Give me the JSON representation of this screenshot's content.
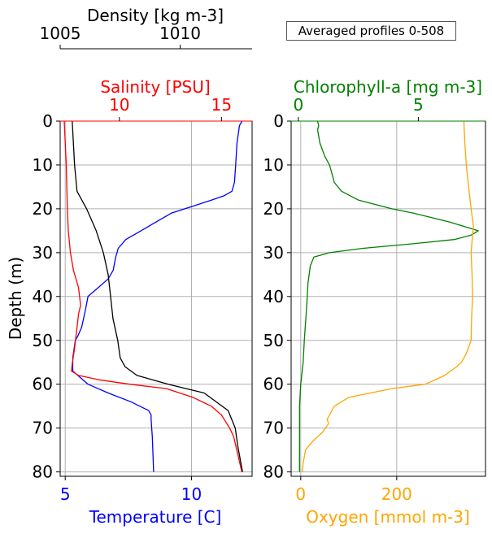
{
  "colors": {
    "temperature": "#0000ff",
    "salinity": "#ff0000",
    "density": "#000000",
    "chlorophyll": "#008000",
    "oxygen": "#ffa500",
    "grid": "#b0b0b0"
  },
  "chart_data": [
    {
      "type": "line",
      "panel": "left",
      "ylabel": "Depth (m)",
      "ylim": [
        81,
        0
      ],
      "yticks": [
        0,
        10,
        20,
        30,
        40,
        50,
        60,
        70,
        80
      ],
      "grid": true,
      "axes": {
        "temperature": {
          "label": "Temperature [C]",
          "position": "bottom",
          "lim": [
            4.8,
            12.4
          ],
          "ticks": [
            5,
            10
          ]
        },
        "salinity": {
          "label": "Salinity [PSU]",
          "position": "top",
          "lim": [
            7.1,
            16.5
          ],
          "ticks": [
            10,
            15
          ]
        },
        "density": {
          "label": "Density [kg m-3]",
          "position": "top-offset",
          "lim": [
            1005,
            1013
          ],
          "ticks": [
            1005,
            1010
          ]
        }
      },
      "series": [
        {
          "id": "temperature",
          "axis": "temperature",
          "color": "#0000ff",
          "x": [
            12.0,
            11.9,
            11.8,
            11.75,
            11.7,
            11.6,
            11.3,
            10.8,
            10.0,
            9.2,
            8.6,
            8.0,
            7.4,
            7.1,
            7.0,
            6.9,
            6.7,
            6.3,
            5.9,
            5.8,
            5.65,
            5.5,
            5.4,
            5.3,
            5.3,
            5.5,
            5.9,
            6.7,
            7.6,
            8.3,
            8.4,
            8.4,
            8.45,
            8.5
          ],
          "y": [
            0,
            1,
            5,
            10,
            14,
            16,
            17,
            18,
            19.5,
            21,
            23,
            25,
            27,
            29,
            31,
            34,
            36,
            38,
            40,
            43,
            47,
            49,
            50,
            54,
            57,
            58,
            60,
            62,
            64,
            66,
            67,
            68,
            72,
            80
          ]
        },
        {
          "id": "salinity",
          "axis": "salinity",
          "color": "#ff0000",
          "x": [
            7.3,
            7.4,
            7.45,
            7.5,
            7.6,
            7.75,
            8.0,
            8.1,
            8.0,
            7.9,
            7.8,
            7.7,
            7.65,
            8.0,
            9.0,
            10.5,
            12.3,
            13.6,
            14.5,
            15.0,
            15.4,
            15.6,
            15.7,
            16.0
          ],
          "y": [
            0,
            10,
            20,
            25,
            30,
            34,
            38,
            42,
            44,
            48,
            52,
            55,
            57,
            58,
            59,
            60,
            61,
            63,
            65,
            67,
            70,
            72,
            74,
            80
          ]
        },
        {
          "id": "density",
          "axis": "density",
          "color": "#000000",
          "x": [
            1005.5,
            1005.6,
            1005.7,
            1006.1,
            1006.5,
            1006.8,
            1007.0,
            1007.1,
            1007.2,
            1007.4,
            1007.5,
            1007.7,
            1008.2,
            1009.5,
            1011.0,
            1012.0,
            1012.3,
            1012.4,
            1012.6
          ],
          "y": [
            0,
            10,
            16,
            20,
            25,
            30,
            35,
            40,
            45,
            50,
            54,
            56,
            58,
            60,
            62,
            66,
            70,
            74,
            80
          ]
        }
      ]
    },
    {
      "type": "line",
      "panel": "right",
      "ylim": [
        81,
        0
      ],
      "yticks": [
        0,
        10,
        20,
        30,
        40,
        50,
        60,
        70,
        80
      ],
      "grid": true,
      "annotation": "Averaged profiles 0-508",
      "axes": {
        "oxygen": {
          "label": "Oxygen [mmol m-3]",
          "position": "bottom",
          "lim": [
            -20,
            385
          ],
          "ticks": [
            0,
            200
          ]
        },
        "chlorophyll": {
          "label": "Chlorophyll-a [mg m-3]",
          "position": "top",
          "lim": [
            -0.3,
            7.8
          ],
          "ticks": [
            0,
            5
          ]
        }
      },
      "series": [
        {
          "id": "chlorophyll",
          "axis": "chlorophyll",
          "color": "#008000",
          "x": [
            0.8,
            0.85,
            0.8,
            0.9,
            1.1,
            1.3,
            1.4,
            1.5,
            1.8,
            2.5,
            3.9,
            4.8,
            6.3,
            7.5,
            7.2,
            6.5,
            4.7,
            2.7,
            1.3,
            0.65,
            0.5,
            0.4,
            0.35,
            0.3,
            0.25,
            0.2,
            0.1,
            0.05,
            0.05,
            0.05
          ],
          "y": [
            0,
            1,
            2,
            5,
            8,
            10,
            12,
            14,
            16,
            18,
            20,
            21,
            23,
            25,
            26,
            27,
            28,
            29,
            30,
            31,
            33,
            37,
            42,
            46,
            50,
            55,
            60,
            65,
            70,
            80
          ]
        },
        {
          "id": "oxygen",
          "axis": "oxygen",
          "color": "#ffa500",
          "x": [
            340,
            342,
            345,
            350,
            355,
            360,
            358,
            355,
            357,
            358,
            356,
            355,
            345,
            335,
            325,
            300,
            260,
            190,
            100,
            70,
            60,
            55,
            58,
            45,
            25,
            10,
            5,
            3
          ],
          "y": [
            0,
            5,
            10,
            15,
            20,
            24,
            26,
            30,
            35,
            40,
            45,
            50,
            53,
            55,
            56,
            58,
            60,
            61,
            63,
            65,
            67,
            68,
            69,
            71,
            73,
            75,
            78,
            80
          ]
        }
      ]
    }
  ]
}
